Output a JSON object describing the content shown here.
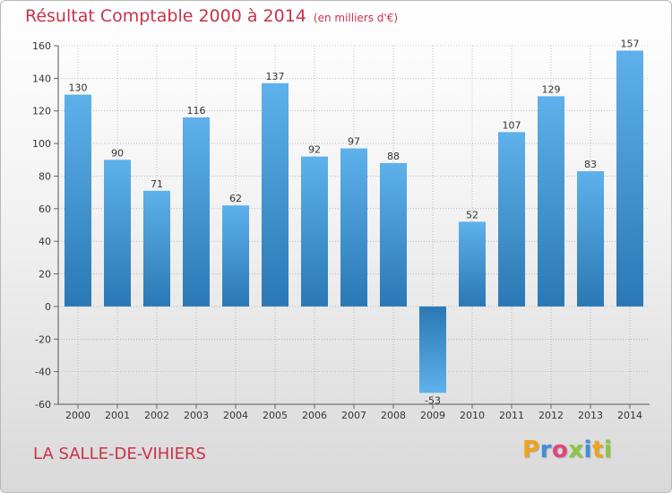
{
  "header": {
    "title": "Résultat Comptable 2000 à 2014",
    "unit": "(en milliers d'€)"
  },
  "footer": {
    "place": "LA SALLE-DE-VIHIERS",
    "logo_letters": [
      "P",
      "r",
      "o",
      "x",
      "i",
      "t",
      "i"
    ],
    "logo_colors": [
      "#f0a21e",
      "#3f8fd6",
      "#e0457b",
      "#8cc63f",
      "#3f8fd6",
      "#f0a21e",
      "#8cc63f"
    ]
  },
  "colors": {
    "title": "#c8324b",
    "bar_light": "#5eb1ea",
    "bar_dark": "#2a78b5",
    "grid": "#9a9a9a"
  },
  "chart_data": {
    "type": "bar",
    "title": "Résultat Comptable 2000 à 2014",
    "xlabel": "",
    "ylabel": "",
    "categories": [
      "2000",
      "2001",
      "2002",
      "2003",
      "2004",
      "2005",
      "2006",
      "2007",
      "2008",
      "2009",
      "2010",
      "2011",
      "2012",
      "2013",
      "2014"
    ],
    "values": [
      130,
      90,
      71,
      116,
      62,
      137,
      92,
      97,
      88,
      -53,
      52,
      107,
      129,
      83,
      157
    ],
    "ylim": [
      -60,
      160
    ],
    "yticks": [
      -60,
      -40,
      -20,
      0,
      20,
      40,
      60,
      80,
      100,
      120,
      140,
      160
    ],
    "grid": true
  }
}
